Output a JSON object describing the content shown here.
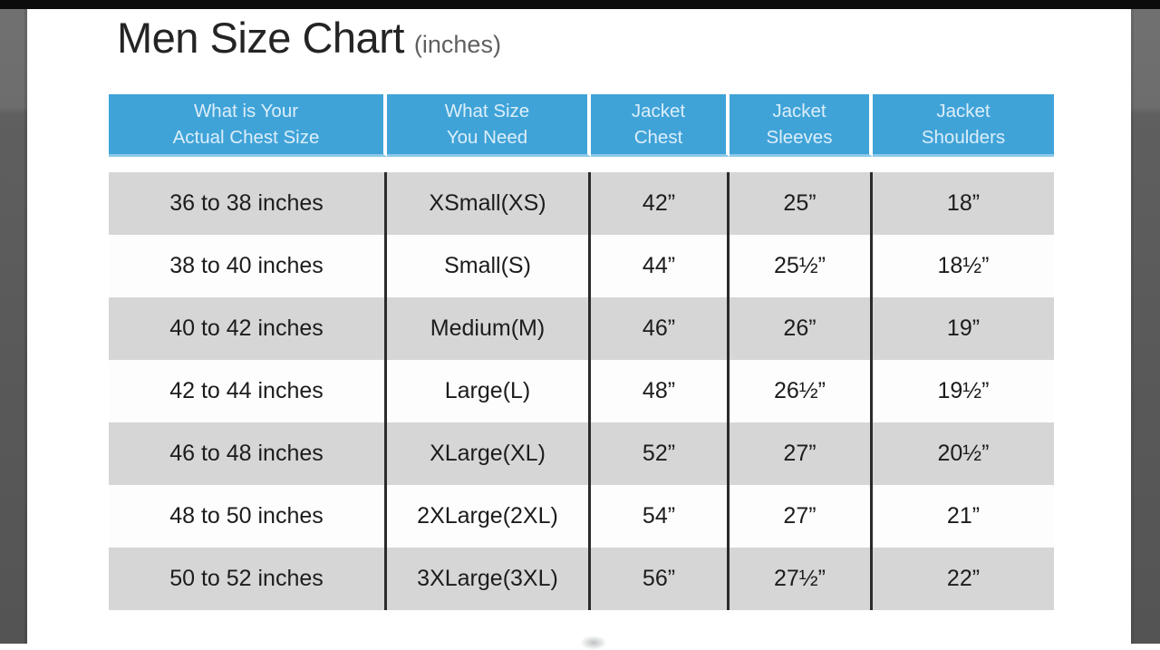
{
  "title": {
    "main": "Men Size Chart",
    "unit": "(inches)"
  },
  "table": {
    "headers": [
      {
        "line1": "What is Your",
        "line2": "Actual Chest Size"
      },
      {
        "line1": "What Size",
        "line2": "You Need"
      },
      {
        "line1": "Jacket",
        "line2": "Chest"
      },
      {
        "line1": "Jacket",
        "line2": "Sleeves"
      },
      {
        "line1": "Jacket",
        "line2": "Shoulders"
      }
    ],
    "rows": [
      [
        "36 to 38 inches",
        "XSmall(XS)",
        "42”",
        "25”",
        "18”"
      ],
      [
        "38 to 40 inches",
        "Small(S)",
        "44”",
        "25½”",
        "18½”"
      ],
      [
        "40 to 42 inches",
        "Medium(M)",
        "46”",
        "26”",
        "19”"
      ],
      [
        "42 to 44 inches",
        "Large(L)",
        "48”",
        "26½”",
        "19½”"
      ],
      [
        "46 to 48 inches",
        "XLarge(XL)",
        "52”",
        "27”",
        "20½”"
      ],
      [
        "48 to 50 inches",
        "2XLarge(2XL)",
        "54”",
        "27”",
        "21”"
      ],
      [
        "50 to 52 inches",
        "3XLarge(3XL)",
        "56”",
        "27½”",
        "22”"
      ]
    ]
  },
  "colors": {
    "header_bg": "#3fa3d8",
    "header_divider": "#ffffff",
    "header_text": "#dceef9",
    "header_bottom_edge": "#8cc9e9",
    "row_shaded": "#d6d6d6",
    "row_plain": "#fdfdfd",
    "cell_divider": "#2b2b2b",
    "body_text": "#1c1c1c",
    "title_text": "#242424",
    "unit_text": "#5f5f5f",
    "side_bar": "#636363",
    "top_bar": "#0c0c0c"
  }
}
